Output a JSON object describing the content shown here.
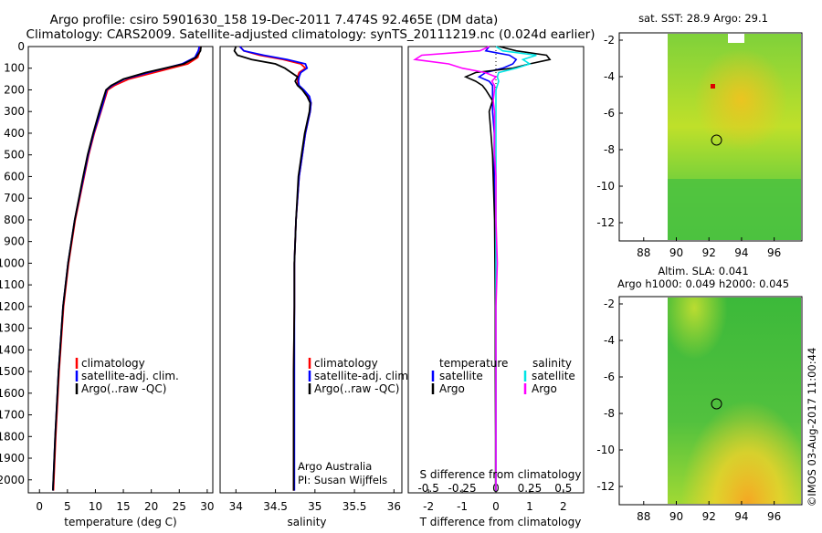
{
  "header": {
    "line1": "Argo profile: csiro 5901630_158 19-Dec-2011 7.474S 92.465E (DM data)",
    "line2": "Climatology: CARS2009. Satellite-adjusted climatology: synTS_20111219.nc (0.024d earlier)"
  },
  "colors": {
    "climatology": "#ff0000",
    "satellite": "#0000ff",
    "argo": "#000000",
    "s_satellite": "#00e5e5",
    "s_argo": "#ff00ff"
  },
  "chart_data": [
    {
      "id": "temperature",
      "type": "line",
      "xlabel": "temperature (deg C)",
      "xlim": [
        -2,
        31
      ],
      "xticks": [
        0,
        5,
        10,
        15,
        20,
        25,
        30
      ],
      "ylim": [
        0,
        2060
      ],
      "yticks": [
        0,
        100,
        200,
        300,
        400,
        500,
        600,
        700,
        800,
        900,
        1000,
        1100,
        1200,
        1300,
        1400,
        1500,
        1600,
        1700,
        1800,
        1900,
        2000
      ],
      "legend": [
        "climatology",
        "satellite-adj. clim.",
        "Argo(..raw -QC)"
      ],
      "depth": [
        0,
        20,
        50,
        80,
        120,
        150,
        180,
        200,
        250,
        300,
        400,
        500,
        600,
        800,
        1000,
        1200,
        1500,
        1800,
        2050
      ],
      "series": [
        {
          "name": "climatology",
          "values": [
            28.8,
            28.7,
            28.3,
            26.5,
            20.5,
            16.0,
            13.4,
            12.2,
            11.6,
            11.0,
            9.8,
            8.8,
            8.0,
            6.4,
            5.2,
            4.3,
            3.5,
            2.9,
            2.5
          ]
        },
        {
          "name": "satellite-adj. clim.",
          "values": [
            28.6,
            28.4,
            27.8,
            25.5,
            19.5,
            15.2,
            13.0,
            12.0,
            11.5,
            10.9,
            9.7,
            8.7,
            7.9,
            6.3,
            5.1,
            4.2,
            3.4,
            2.8,
            2.4
          ]
        },
        {
          "name": "Argo(..raw -QC)",
          "values": [
            28.9,
            28.8,
            28.0,
            25.8,
            19.0,
            15.0,
            12.8,
            11.9,
            11.3,
            10.7,
            9.6,
            8.6,
            7.8,
            6.3,
            5.1,
            4.2,
            3.4,
            2.8,
            2.4
          ]
        }
      ]
    },
    {
      "id": "salinity",
      "type": "line",
      "xlabel": "salinity",
      "xlim": [
        33.8,
        36.1
      ],
      "xticks": [
        34,
        34.5,
        35,
        35.5,
        36
      ],
      "ylim": [
        0,
        2060
      ],
      "legend": [
        "climatology",
        "satellite-adj. clim.",
        "Argo(..raw -QC)"
      ],
      "annotation": [
        "Argo Australia",
        "PI: Susan Wijffels"
      ],
      "depth": [
        0,
        20,
        40,
        60,
        80,
        100,
        120,
        140,
        160,
        180,
        200,
        230,
        260,
        300,
        350,
        400,
        500,
        600,
        800,
        1000,
        1200,
        1500,
        1800,
        2050
      ],
      "series": [
        {
          "name": "climatology",
          "values": [
            34.05,
            34.1,
            34.3,
            34.6,
            34.82,
            34.88,
            34.8,
            34.78,
            34.78,
            34.79,
            34.85,
            34.92,
            34.95,
            34.94,
            34.91,
            34.88,
            34.84,
            34.8,
            34.76,
            34.74,
            34.74,
            34.73,
            34.73,
            34.73
          ]
        },
        {
          "name": "satellite-adj. clim.",
          "values": [
            34.05,
            34.1,
            34.35,
            34.65,
            34.88,
            34.9,
            34.82,
            34.8,
            34.79,
            34.8,
            34.86,
            34.93,
            34.95,
            34.94,
            34.91,
            34.88,
            34.84,
            34.8,
            34.76,
            34.74,
            34.74,
            34.74,
            34.74,
            34.74
          ]
        },
        {
          "name": "Argo(..raw -QC)",
          "values": [
            34.0,
            33.98,
            34.02,
            34.2,
            34.5,
            34.62,
            34.7,
            34.78,
            34.75,
            34.78,
            34.84,
            34.9,
            34.94,
            34.93,
            34.9,
            34.87,
            34.83,
            34.79,
            34.76,
            34.74,
            34.74,
            34.73,
            34.73,
            34.73
          ]
        }
      ]
    },
    {
      "id": "differences",
      "type": "line",
      "xlabel": "T difference from climatology",
      "xlabel_top": "S difference from climatology",
      "xlim": [
        -2.6,
        2.6
      ],
      "xticks": [
        -2,
        -1,
        0,
        1,
        2
      ],
      "s_ticks": [
        -0.5,
        -0.25,
        0,
        0.25,
        0.5
      ],
      "ylim": [
        0,
        2060
      ],
      "legend_titles": [
        "temperature",
        "salinity"
      ],
      "legend": [
        "satellite",
        "Argo",
        "satellite",
        "Argo"
      ],
      "depth": [
        0,
        20,
        40,
        60,
        80,
        100,
        120,
        140,
        160,
        180,
        200,
        250,
        300,
        400,
        500,
        600,
        800,
        1000,
        1200,
        1500,
        1800,
        2050
      ],
      "series": [
        {
          "name": "T satellite",
          "values": [
            -0.2,
            -0.3,
            0.4,
            0.6,
            0.5,
            0.2,
            -0.3,
            -0.5,
            -0.2,
            -0.1,
            -0.1,
            -0.1,
            -0.1,
            -0.05,
            -0.05,
            -0.05,
            -0.03,
            -0.02,
            -0.02,
            0.0,
            0.0,
            0.0
          ]
        },
        {
          "name": "T Argo",
          "values": [
            0.1,
            0.6,
            1.5,
            1.6,
            1.0,
            0.5,
            -0.6,
            -0.9,
            -0.6,
            -0.4,
            -0.3,
            -0.1,
            -0.2,
            -0.15,
            -0.1,
            -0.08,
            -0.04,
            -0.03,
            -0.02,
            -0.02,
            -0.01,
            -0.01
          ]
        },
        {
          "name": "S satellite",
          "values": [
            0.0,
            0.05,
            0.3,
            0.2,
            0.25,
            0.15,
            0.02,
            0.01,
            0.02,
            0.01,
            0.0,
            0.0,
            0.0,
            0.0,
            0.0,
            0.0,
            0.0,
            0.0,
            0.0,
            0.0,
            0.0,
            0.0
          ]
        },
        {
          "name": "S Argo",
          "values": [
            -0.05,
            -0.12,
            -0.55,
            -0.6,
            -0.35,
            -0.25,
            -0.08,
            0.0,
            -0.03,
            -0.01,
            -0.01,
            -0.02,
            -0.01,
            -0.01,
            -0.01,
            0.0,
            0.0,
            0.01,
            0.0,
            0.0,
            0.0,
            0.0
          ]
        }
      ]
    },
    {
      "id": "sst_map",
      "type": "heatmap",
      "title": "sat. SST: 28.9  Argo: 29.1",
      "xticks": [
        88,
        90,
        92,
        94,
        96
      ],
      "yticks": [
        -2,
        -4,
        -6,
        -8,
        -10,
        -12
      ],
      "xlim": [
        86.5,
        97.7
      ],
      "ylim": [
        -13,
        -1.6
      ],
      "argo_position": [
        92.465,
        -7.474
      ]
    },
    {
      "id": "sla_map",
      "type": "heatmap",
      "title": "Altim. SLA: 0.041",
      "subtitle": "Argo h1000: 0.049 h2000: 0.045",
      "xticks": [
        88,
        90,
        92,
        94,
        96
      ],
      "yticks": [
        -2,
        -4,
        -6,
        -8,
        -10,
        -12
      ],
      "xlim": [
        86.5,
        97.7
      ],
      "ylim": [
        -13,
        -1.6
      ],
      "argo_position": [
        92.465,
        -7.474
      ]
    }
  ],
  "credit": "©IMOS 03-Aug-2017 11:00:44"
}
